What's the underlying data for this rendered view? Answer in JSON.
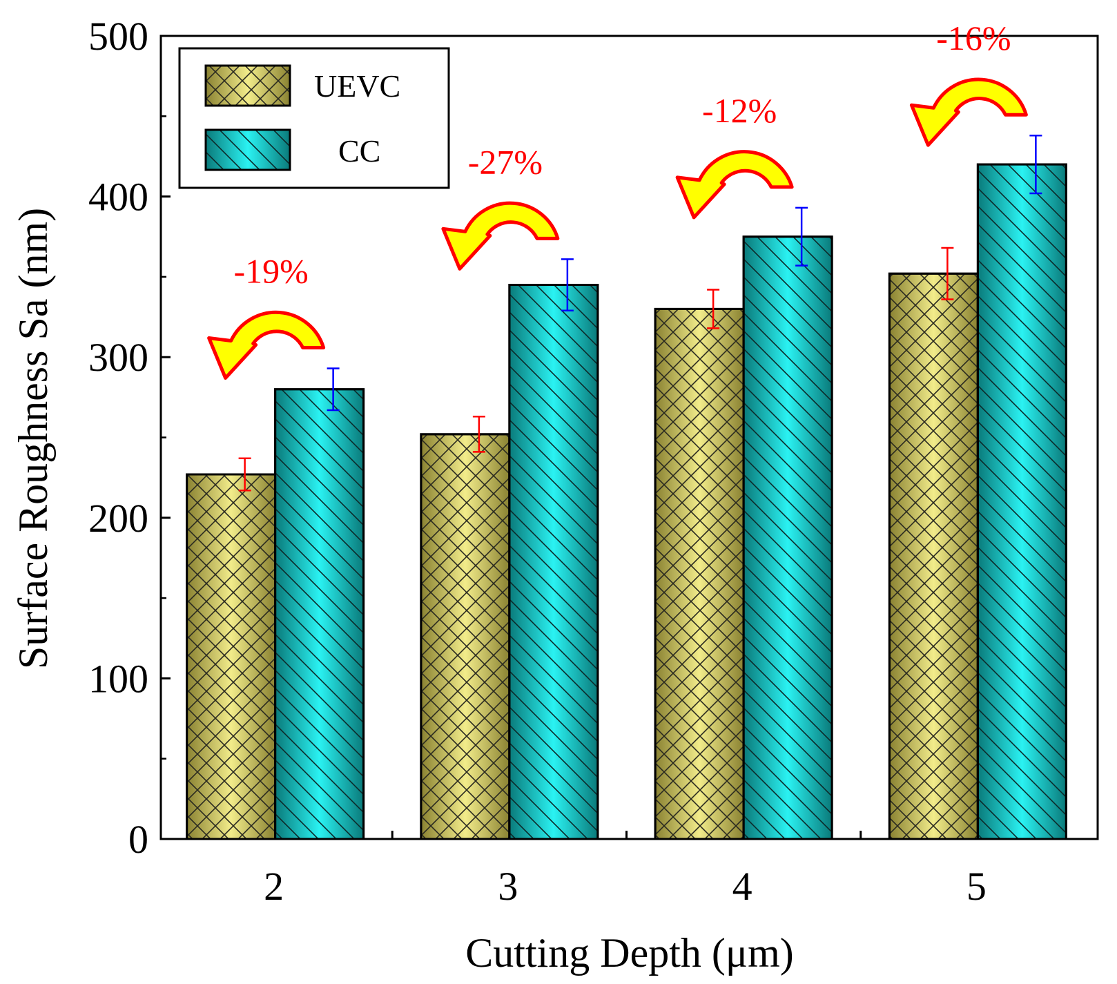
{
  "chart_data": {
    "type": "bar",
    "xlabel": "Cutting Depth (μm)",
    "ylabel": "Surface Roughness Sa (nm)",
    "ylim": [
      0,
      500
    ],
    "yticks": [
      0,
      100,
      200,
      300,
      400,
      500
    ],
    "yticks_labels": [
      "0",
      "100",
      "200",
      "300",
      "400",
      "500"
    ],
    "categories": [
      "2",
      "3",
      "4",
      "5"
    ],
    "grid": false,
    "legend": "top-left",
    "series": [
      {
        "name": "UEVC",
        "values": [
          227,
          252,
          330,
          352
        ],
        "errors": [
          10,
          11,
          12,
          16
        ],
        "color": "#e8df6e",
        "error_color": "#ff0000"
      },
      {
        "name": "CC",
        "values": [
          280,
          345,
          375,
          420
        ],
        "errors": [
          13,
          16,
          18,
          18
        ],
        "color": "#19dcdc",
        "error_color": "#0000ff"
      }
    ],
    "annotations": [
      "-19%",
      "-27%",
      "-12%",
      "-16%"
    ],
    "annotation_color": "#ff0000",
    "arrow_color": "#ffff00",
    "arrow_outline": "#ff0000"
  }
}
